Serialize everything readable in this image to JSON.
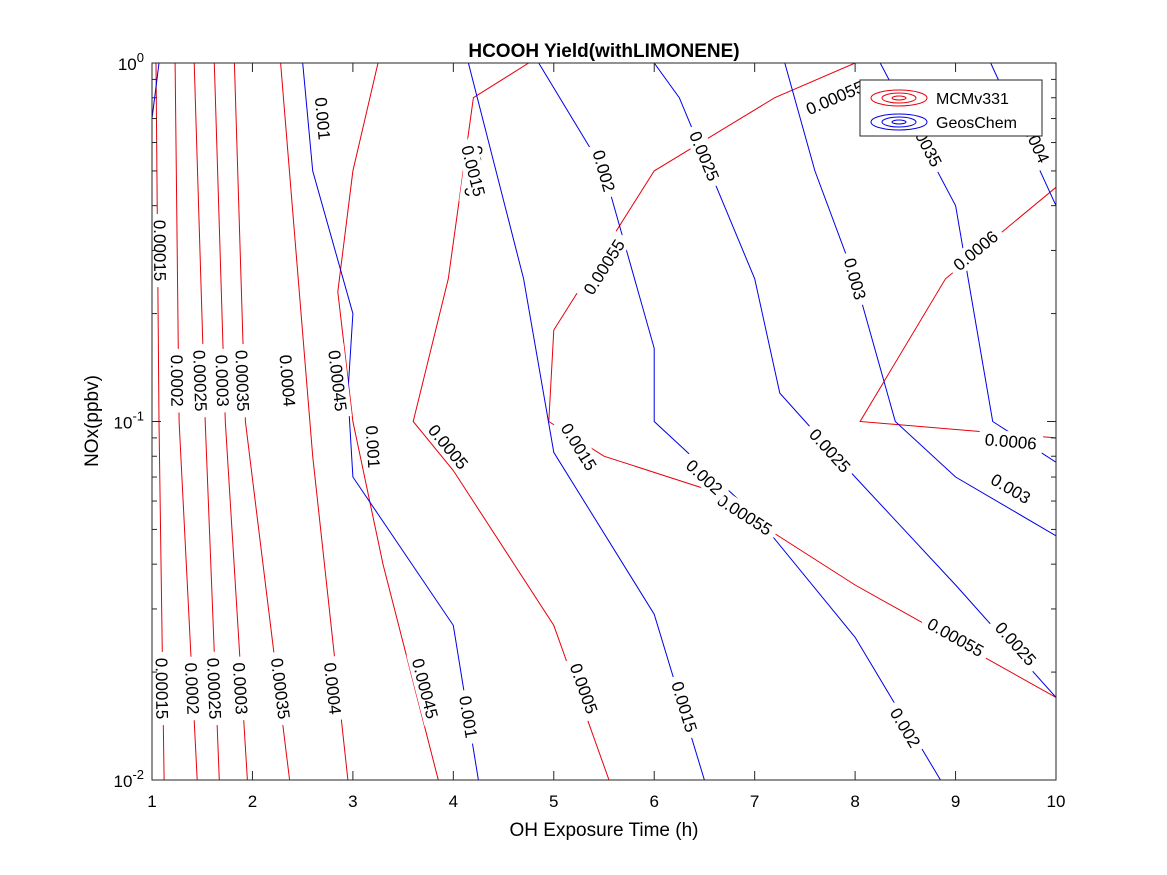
{
  "chart_data": {
    "type": "contour",
    "title": "HCOOH Yield(withLIMONENE)",
    "xlabel": "OH Exposure Time (h)",
    "ylabel": "NOx(ppbv)",
    "xlim": [
      1,
      10
    ],
    "ylim": [
      0.01,
      1
    ],
    "yscale": "log",
    "x_ticks": [
      "1",
      "2",
      "3",
      "4",
      "5",
      "6",
      "7",
      "8",
      "9",
      "10"
    ],
    "y_ticks": [
      {
        "value": 0.01,
        "base": "10",
        "exp": "-2"
      },
      {
        "value": 0.1,
        "base": "10",
        "exp": "-1"
      },
      {
        "value": 1,
        "base": "10",
        "exp": "0"
      }
    ],
    "legend": {
      "location": "top-right",
      "entries": [
        {
          "name": "MCMv331",
          "color": "#e8000b"
        },
        {
          "name": "GeosChem",
          "color": "#0000e6"
        }
      ]
    },
    "series": [
      {
        "name": "MCMv331",
        "color": "#e8000b",
        "levels": [
          {
            "level": 0.00015,
            "label": "0.00015",
            "points": [
              [
                1.12,
                0.01
              ],
              [
                1.07,
                0.1
              ],
              [
                1.04,
                1
              ]
            ],
            "labels": [
              {
                "x": 1.08,
                "y": 0.3,
                "text": "0.00015"
              },
              {
                "x": 1.1,
                "y": 0.018,
                "text": "0.00015"
              }
            ]
          },
          {
            "level": 0.0002,
            "label": "0.0002",
            "points": [
              [
                1.45,
                0.01
              ],
              [
                1.27,
                0.1
              ],
              [
                1.23,
                1
              ]
            ],
            "labels": [
              {
                "x": 1.25,
                "y": 0.13,
                "text": "0.0002"
              },
              {
                "x": 1.4,
                "y": 0.018,
                "text": "0.0002"
              }
            ]
          },
          {
            "level": 0.00025,
            "label": "0.00025",
            "points": [
              [
                1.67,
                0.01
              ],
              [
                1.53,
                0.1
              ],
              [
                1.42,
                1
              ]
            ],
            "labels": [
              {
                "x": 1.48,
                "y": 0.13,
                "text": "0.00025"
              },
              {
                "x": 1.62,
                "y": 0.018,
                "text": "0.00025"
              }
            ]
          },
          {
            "level": 0.0003,
            "label": "0.0003",
            "points": [
              [
                1.95,
                0.01
              ],
              [
                1.73,
                0.1
              ],
              [
                1.62,
                1
              ]
            ],
            "labels": [
              {
                "x": 1.7,
                "y": 0.13,
                "text": "0.0003"
              },
              {
                "x": 1.88,
                "y": 0.018,
                "text": "0.0003"
              }
            ]
          },
          {
            "level": 0.00035,
            "label": "0.00035",
            "points": [
              [
                2.37,
                0.01
              ],
              [
                1.93,
                0.1
              ],
              [
                1.82,
                1
              ]
            ],
            "labels": [
              {
                "x": 1.9,
                "y": 0.13,
                "text": "0.00035"
              },
              {
                "x": 2.28,
                "y": 0.018,
                "text": "0.00035"
              }
            ]
          },
          {
            "level": 0.0004,
            "label": "0.0004",
            "points": [
              [
                2.95,
                0.01
              ],
              [
                2.6,
                0.08
              ],
              [
                2.28,
                1
              ]
            ],
            "labels": [
              {
                "x": 2.35,
                "y": 0.13,
                "text": "0.0004"
              },
              {
                "x": 2.8,
                "y": 0.018,
                "text": "0.0004"
              }
            ]
          },
          {
            "level": 0.00045,
            "label": "0.00045",
            "points": [
              [
                3.85,
                0.01
              ],
              [
                3.3,
                0.04
              ],
              [
                3.0,
                0.1
              ],
              [
                2.85,
                0.23
              ],
              [
                3.0,
                0.5
              ],
              [
                3.25,
                1
              ]
            ],
            "labels": [
              {
                "x": 2.85,
                "y": 0.13,
                "text": "0.00045"
              },
              {
                "x": 3.72,
                "y": 0.018,
                "text": "0.00045"
              }
            ]
          },
          {
            "level": 0.0005,
            "label": "0.0005",
            "points": [
              [
                5.55,
                0.01
              ],
              [
                5.0,
                0.027
              ],
              [
                4.0,
                0.073
              ],
              [
                3.6,
                0.1
              ],
              [
                3.95,
                0.25
              ],
              [
                4.2,
                0.8
              ],
              [
                4.75,
                1
              ]
            ],
            "labels": [
              {
                "x": 3.95,
                "y": 0.085,
                "text": "0.0005"
              },
              {
                "x": 5.3,
                "y": 0.018,
                "text": "0.0005"
              },
              {
                "x": 4.2,
                "y": 0.5,
                "text": "0.0005"
              }
            ]
          },
          {
            "level": 0.00055,
            "label": "0.00055",
            "points": [
              [
                10,
                0.017
              ],
              [
                8.0,
                0.035
              ],
              [
                6.5,
                0.065
              ],
              [
                5.5,
                0.08
              ],
              [
                4.95,
                0.1
              ],
              [
                5.0,
                0.18
              ],
              [
                6.0,
                0.5
              ],
              [
                7.2,
                0.8
              ],
              [
                8.0,
                1
              ]
            ],
            "labels": [
              {
                "x": 6.9,
                "y": 0.055,
                "text": "0.00055"
              },
              {
                "x": 9.0,
                "y": 0.025,
                "text": "0.00055"
              },
              {
                "x": 5.5,
                "y": 0.27,
                "text": "0.00055"
              },
              {
                "x": 7.8,
                "y": 0.8,
                "text": "0.00055"
              }
            ]
          },
          {
            "level": 0.0006,
            "label": "0.0006",
            "points": [
              [
                10,
                0.09
              ],
              [
                8.05,
                0.1
              ],
              [
                8.9,
                0.25
              ],
              [
                10,
                0.45
              ]
            ],
            "labels": [
              {
                "x": 9.55,
                "y": 0.088,
                "text": "0.0006"
              },
              {
                "x": 9.2,
                "y": 0.3,
                "text": "0.0006"
              }
            ]
          }
        ]
      },
      {
        "name": "GeosChem",
        "color": "#0000e6",
        "levels": [
          {
            "level": 0.00015,
            "label": "",
            "points": [
              [
                1.0,
                0.7
              ],
              [
                1.07,
                1
              ]
            ],
            "labels": []
          },
          {
            "level": 0.001,
            "label": "0.001",
            "points": [
              [
                4.25,
                0.01
              ],
              [
                4.0,
                0.027
              ],
              [
                3.0,
                0.07
              ],
              [
                2.95,
                0.12
              ],
              [
                3.0,
                0.2
              ],
              [
                2.6,
                0.5
              ],
              [
                2.5,
                1
              ]
            ],
            "labels": [
              {
                "x": 3.2,
                "y": 0.085,
                "text": "0.001"
              },
              {
                "x": 4.15,
                "y": 0.015,
                "text": "0.001"
              },
              {
                "x": 2.7,
                "y": 0.7,
                "text": "0.001"
              }
            ]
          },
          {
            "level": 0.0015,
            "label": "0.0015",
            "points": [
              [
                6.5,
                0.01
              ],
              [
                6.0,
                0.029
              ],
              [
                5.0,
                0.082
              ],
              [
                4.7,
                0.25
              ],
              [
                4.15,
                1
              ]
            ],
            "labels": [
              {
                "x": 5.25,
                "y": 0.085,
                "text": "0.0015"
              },
              {
                "x": 6.3,
                "y": 0.016,
                "text": "0.0015"
              },
              {
                "x": 4.2,
                "y": 0.5,
                "text": "0.0015"
              }
            ]
          },
          {
            "level": 0.002,
            "label": "0.002",
            "points": [
              [
                8.85,
                0.01
              ],
              [
                8.0,
                0.025
              ],
              [
                7.0,
                0.055
              ],
              [
                6.0,
                0.1
              ],
              [
                6.0,
                0.16
              ],
              [
                5.5,
                0.5
              ],
              [
                4.85,
                1
              ]
            ],
            "labels": [
              {
                "x": 6.5,
                "y": 0.07,
                "text": "0.002"
              },
              {
                "x": 8.5,
                "y": 0.014,
                "text": "0.002"
              },
              {
                "x": 5.5,
                "y": 0.5,
                "text": "0.002"
              }
            ]
          },
          {
            "level": 0.0025,
            "label": "0.0025",
            "points": [
              [
                10,
                0.017
              ],
              [
                9.0,
                0.035
              ],
              [
                8.0,
                0.07
              ],
              [
                7.25,
                0.12
              ],
              [
                7.0,
                0.25
              ],
              [
                6.25,
                0.8
              ],
              [
                6.0,
                1
              ]
            ],
            "labels": [
              {
                "x": 7.75,
                "y": 0.083,
                "text": "0.0025"
              },
              {
                "x": 9.6,
                "y": 0.024,
                "text": "0.0025"
              },
              {
                "x": 6.5,
                "y": 0.55,
                "text": "0.0025"
              }
            ]
          },
          {
            "level": 0.003,
            "label": "0.003",
            "points": [
              [
                10,
                0.048
              ],
              [
                9.0,
                0.07
              ],
              [
                8.4,
                0.1
              ],
              [
                8.0,
                0.25
              ],
              [
                7.6,
                0.5
              ],
              [
                7.3,
                1
              ]
            ],
            "labels": [
              {
                "x": 9.55,
                "y": 0.065,
                "text": "0.003"
              },
              {
                "x": 8.0,
                "y": 0.25,
                "text": "0.003"
              }
            ]
          },
          {
            "level": 0.0035,
            "label": "0.0035",
            "points": [
              [
                10,
                0.077
              ],
              [
                9.37,
                0.1
              ],
              [
                9.0,
                0.4
              ],
              [
                8.25,
                1
              ]
            ],
            "labels": [
              {
                "x": 8.7,
                "y": 0.6,
                "text": "0.0035"
              }
            ]
          },
          {
            "level": 0.004,
            "label": "0.004",
            "points": [
              [
                10,
                0.4
              ],
              [
                9.35,
                1
              ]
            ],
            "labels": [
              {
                "x": 9.8,
                "y": 0.6,
                "text": "0.004"
              }
            ]
          }
        ]
      }
    ]
  }
}
